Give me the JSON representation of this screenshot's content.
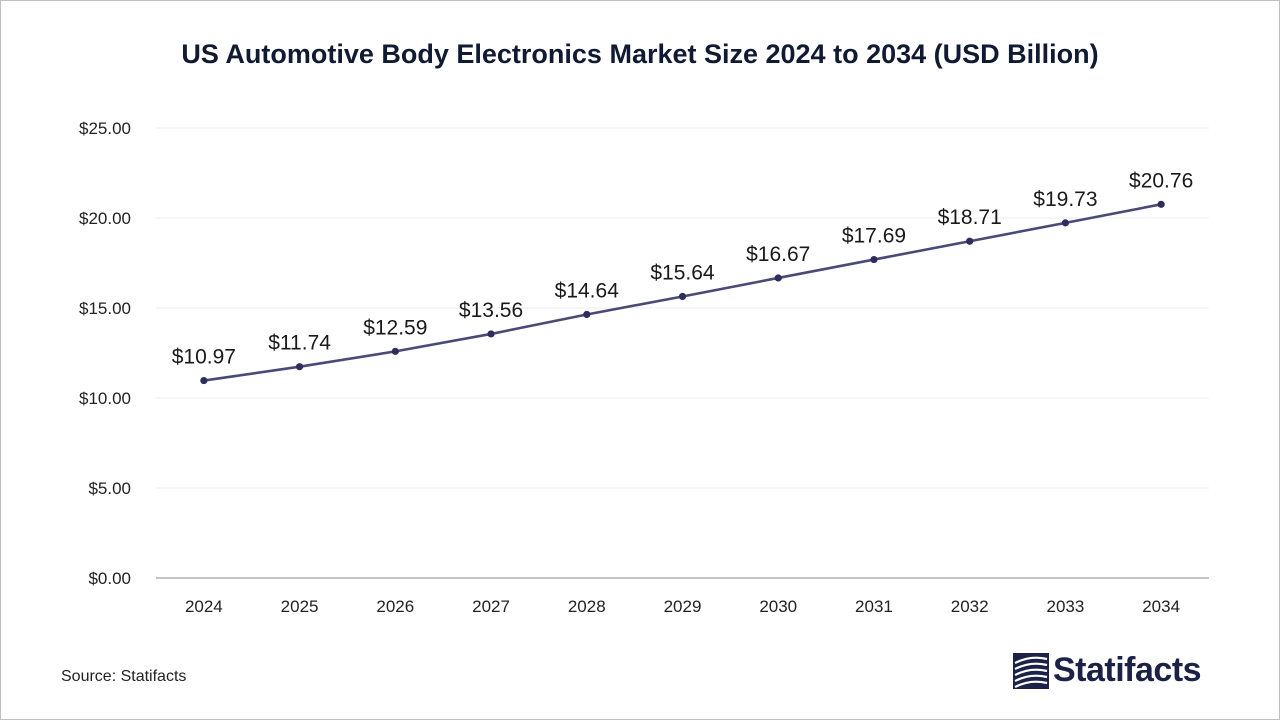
{
  "chart_data": {
    "type": "line",
    "title": "US Automotive Body Electronics Market Size 2024 to 2034 (USD Billion)",
    "xlabel": "",
    "ylabel": "",
    "categories": [
      "2024",
      "2025",
      "2026",
      "2027",
      "2028",
      "2029",
      "2030",
      "2031",
      "2032",
      "2033",
      "2034"
    ],
    "series": [
      {
        "values": [
          10.97,
          11.74,
          12.59,
          13.56,
          14.64,
          15.64,
          16.67,
          17.69,
          18.71,
          19.73,
          20.76
        ],
        "data_labels": [
          "$10.97",
          "$11.74",
          "$12.59",
          "$13.56",
          "$14.64",
          "$15.64",
          "$16.67",
          "$17.69",
          "$18.71",
          "$19.73",
          "$20.76"
        ],
        "color": "#4a4a78"
      }
    ],
    "ylim": [
      0,
      25
    ],
    "yticks": [
      0,
      5,
      10,
      15,
      20,
      25
    ],
    "ytick_labels": [
      "$0.00",
      "$5.00",
      "$10.00",
      "$15.00",
      "$20.00",
      "$25.00"
    ],
    "grid": true,
    "legend": "none"
  },
  "source_text": "Source: Statifacts",
  "brand": {
    "name": "Statifacts",
    "icon": "statifacts-logo-icon",
    "color": "#1c2148"
  }
}
